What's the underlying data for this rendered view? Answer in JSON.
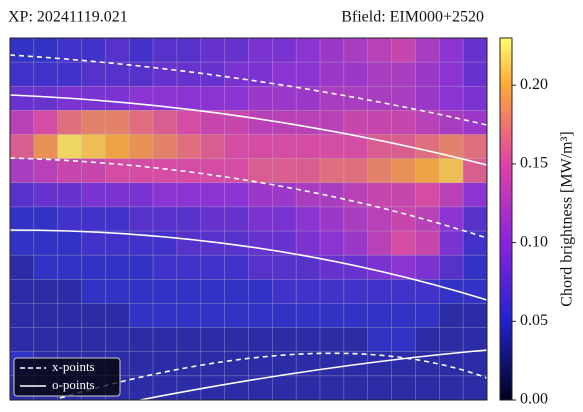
{
  "chart_data": {
    "type": "heatmap",
    "title_left": "XP: 20241119.021",
    "title_right": "Bfield: EIM000+2520",
    "colorbar_label": "Chord brightness [MW/m³]",
    "legend": [
      "x-points",
      "o-points"
    ],
    "zlim": [
      0,
      0.23
    ],
    "zticks": [
      {
        "value": 0,
        "label": "0.00"
      },
      0.05,
      {
        "value": 0.1,
        "label": "0.10"
      },
      0.15,
      {
        "value": 0.2,
        "label": "0.20"
      }
    ],
    "values": [
      [
        0.05,
        0.05,
        0.06,
        0.06,
        0.07,
        0.06,
        0.07,
        0.07,
        0.08,
        0.08,
        0.09,
        0.09,
        0.1,
        0.11,
        0.12,
        0.13,
        0.14,
        0.12,
        0.1,
        0.08
      ],
      [
        0.06,
        0.06,
        0.06,
        0.07,
        0.07,
        0.07,
        0.08,
        0.08,
        0.08,
        0.09,
        0.09,
        0.1,
        0.1,
        0.11,
        0.11,
        0.12,
        0.12,
        0.11,
        0.1,
        0.08
      ],
      [
        0.08,
        0.08,
        0.09,
        0.09,
        0.09,
        0.1,
        0.1,
        0.1,
        0.1,
        0.1,
        0.11,
        0.11,
        0.11,
        0.12,
        0.12,
        0.12,
        0.12,
        0.11,
        0.1,
        0.09
      ],
      [
        0.13,
        0.15,
        0.17,
        0.18,
        0.18,
        0.17,
        0.16,
        0.15,
        0.14,
        0.14,
        0.13,
        0.13,
        0.13,
        0.13,
        0.14,
        0.14,
        0.14,
        0.13,
        0.12,
        0.11
      ],
      [
        0.16,
        0.19,
        0.22,
        0.21,
        0.2,
        0.19,
        0.18,
        0.17,
        0.16,
        0.15,
        0.15,
        0.15,
        0.15,
        0.15,
        0.15,
        0.16,
        0.16,
        0.17,
        0.18,
        0.17
      ],
      [
        0.12,
        0.13,
        0.14,
        0.14,
        0.15,
        0.15,
        0.15,
        0.15,
        0.15,
        0.15,
        0.16,
        0.16,
        0.16,
        0.17,
        0.17,
        0.18,
        0.19,
        0.2,
        0.21,
        0.16
      ],
      [
        0.07,
        0.08,
        0.08,
        0.09,
        0.09,
        0.09,
        0.1,
        0.1,
        0.1,
        0.1,
        0.11,
        0.11,
        0.12,
        0.12,
        0.13,
        0.14,
        0.14,
        0.15,
        0.13,
        0.1
      ],
      [
        0.05,
        0.05,
        0.06,
        0.06,
        0.06,
        0.07,
        0.07,
        0.07,
        0.08,
        0.08,
        0.09,
        0.09,
        0.1,
        0.11,
        0.12,
        0.13,
        0.14,
        0.13,
        0.1,
        0.07
      ],
      [
        0.05,
        0.05,
        0.05,
        0.06,
        0.06,
        0.06,
        0.06,
        0.07,
        0.07,
        0.07,
        0.08,
        0.08,
        0.09,
        0.1,
        0.11,
        0.13,
        0.15,
        0.14,
        0.09,
        0.06
      ],
      [
        0.04,
        0.05,
        0.05,
        0.05,
        0.05,
        0.05,
        0.06,
        0.06,
        0.06,
        0.06,
        0.07,
        0.07,
        0.07,
        0.08,
        0.08,
        0.09,
        0.1,
        0.09,
        0.07,
        0.05
      ],
      [
        0.04,
        0.04,
        0.04,
        0.05,
        0.05,
        0.05,
        0.05,
        0.05,
        0.05,
        0.05,
        0.05,
        0.06,
        0.06,
        0.06,
        0.06,
        0.06,
        0.06,
        0.06,
        0.05,
        0.05
      ],
      [
        0.04,
        0.04,
        0.04,
        0.04,
        0.04,
        0.05,
        0.05,
        0.05,
        0.05,
        0.05,
        0.05,
        0.05,
        0.05,
        0.05,
        0.05,
        0.05,
        0.05,
        0.05,
        0.04,
        0.04
      ],
      [
        0.04,
        0.04,
        0.04,
        0.04,
        0.04,
        0.04,
        0.04,
        0.04,
        0.04,
        0.04,
        0.04,
        0.04,
        0.04,
        0.04,
        0.04,
        0.05,
        0.05,
        0.04,
        0.04,
        0.04
      ],
      [
        0.05,
        0.04,
        0.04,
        0.04,
        0.04,
        0.04,
        0.04,
        0.04,
        0.04,
        0.04,
        0.04,
        0.04,
        0.04,
        0.04,
        0.04,
        0.04,
        0.04,
        0.04,
        0.04,
        0.04
      ],
      [
        0.04,
        0.04,
        0.04,
        0.04,
        0.04,
        0.04,
        0.04,
        0.04,
        0.04,
        0.04,
        0.04,
        0.04,
        0.04,
        0.04,
        0.04,
        0.04,
        0.04,
        0.04,
        0.04,
        0.04
      ]
    ]
  }
}
